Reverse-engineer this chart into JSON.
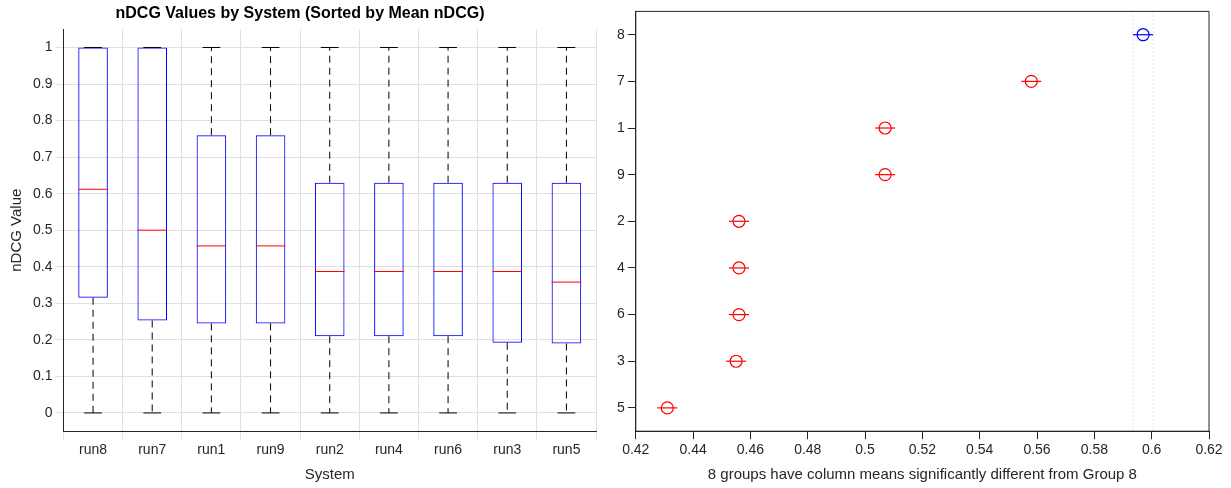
{
  "chart_data": [
    {
      "type": "box",
      "title": "nDCG Values by System (Sorted by Mean nDCG)",
      "xlabel": "System",
      "ylabel": "nDCG Value",
      "categories": [
        "run8",
        "run7",
        "run1",
        "run9",
        "run2",
        "run4",
        "run6",
        "run3",
        "run5"
      ],
      "color": "#0000ff",
      "boxes": [
        {
          "low": 0,
          "q1": 0.315,
          "median": 0.612,
          "q3": 1,
          "high": 1
        },
        {
          "low": 0,
          "q1": 0.253,
          "median": 0.5,
          "q3": 1,
          "high": 1
        },
        {
          "low": 0,
          "q1": 0.245,
          "median": 0.457,
          "q3": 0.76,
          "high": 1
        },
        {
          "low": 0,
          "q1": 0.245,
          "median": 0.457,
          "q3": 0.76,
          "high": 1
        },
        {
          "low": 0,
          "q1": 0.21,
          "median": 0.387,
          "q3": 0.63,
          "high": 1
        },
        {
          "low": 0,
          "q1": 0.21,
          "median": 0.387,
          "q3": 0.63,
          "high": 1
        },
        {
          "low": 0,
          "q1": 0.21,
          "median": 0.387,
          "q3": 0.63,
          "high": 1
        },
        {
          "low": 0,
          "q1": 0.192,
          "median": 0.387,
          "q3": 0.63,
          "high": 1
        },
        {
          "low": 0,
          "q1": 0.19,
          "median": 0.358,
          "q3": 0.63,
          "high": 1
        }
      ],
      "ylim": [
        -0.05,
        1.05
      ],
      "yticks": [
        0,
        0.1,
        0.2,
        0.3,
        0.4,
        0.5,
        0.6,
        0.7,
        0.8,
        0.9,
        1
      ],
      "grid": true,
      "legend": false
    },
    {
      "type": "scatter",
      "orientation": "horizontal",
      "xlabel": "8 groups have column means significantly different from Group 8",
      "categories": [
        "8",
        "7",
        "1",
        "9",
        "2",
        "4",
        "6",
        "3",
        "5"
      ],
      "values": [
        0.597,
        0.558,
        0.507,
        0.507,
        0.456,
        0.456,
        0.456,
        0.455,
        0.431
      ],
      "errors": [
        0.0035,
        0.0035,
        0.0035,
        0.0035,
        0.0035,
        0.0035,
        0.0035,
        0.0035,
        0.0035
      ],
      "colors": [
        "#0000ff",
        "#ff0000",
        "#ff0000",
        "#ff0000",
        "#ff0000",
        "#ff0000",
        "#ff0000",
        "#ff0000",
        "#ff0000"
      ],
      "marker": "circle",
      "xlim": [
        0.42,
        0.62
      ],
      "xticks": [
        0.42,
        0.44,
        0.46,
        0.48,
        0.5,
        0.52,
        0.54,
        0.56,
        0.58,
        0.6,
        0.62
      ],
      "ref_lines": [
        {
          "axis": "x",
          "value": 0.5935,
          "color": "#c8c8c8",
          "line_style": "dotted"
        },
        {
          "axis": "x",
          "value": 0.6005,
          "color": "#c8c8c8",
          "line_style": "dotted"
        }
      ],
      "grid": false,
      "legend": false
    }
  ]
}
